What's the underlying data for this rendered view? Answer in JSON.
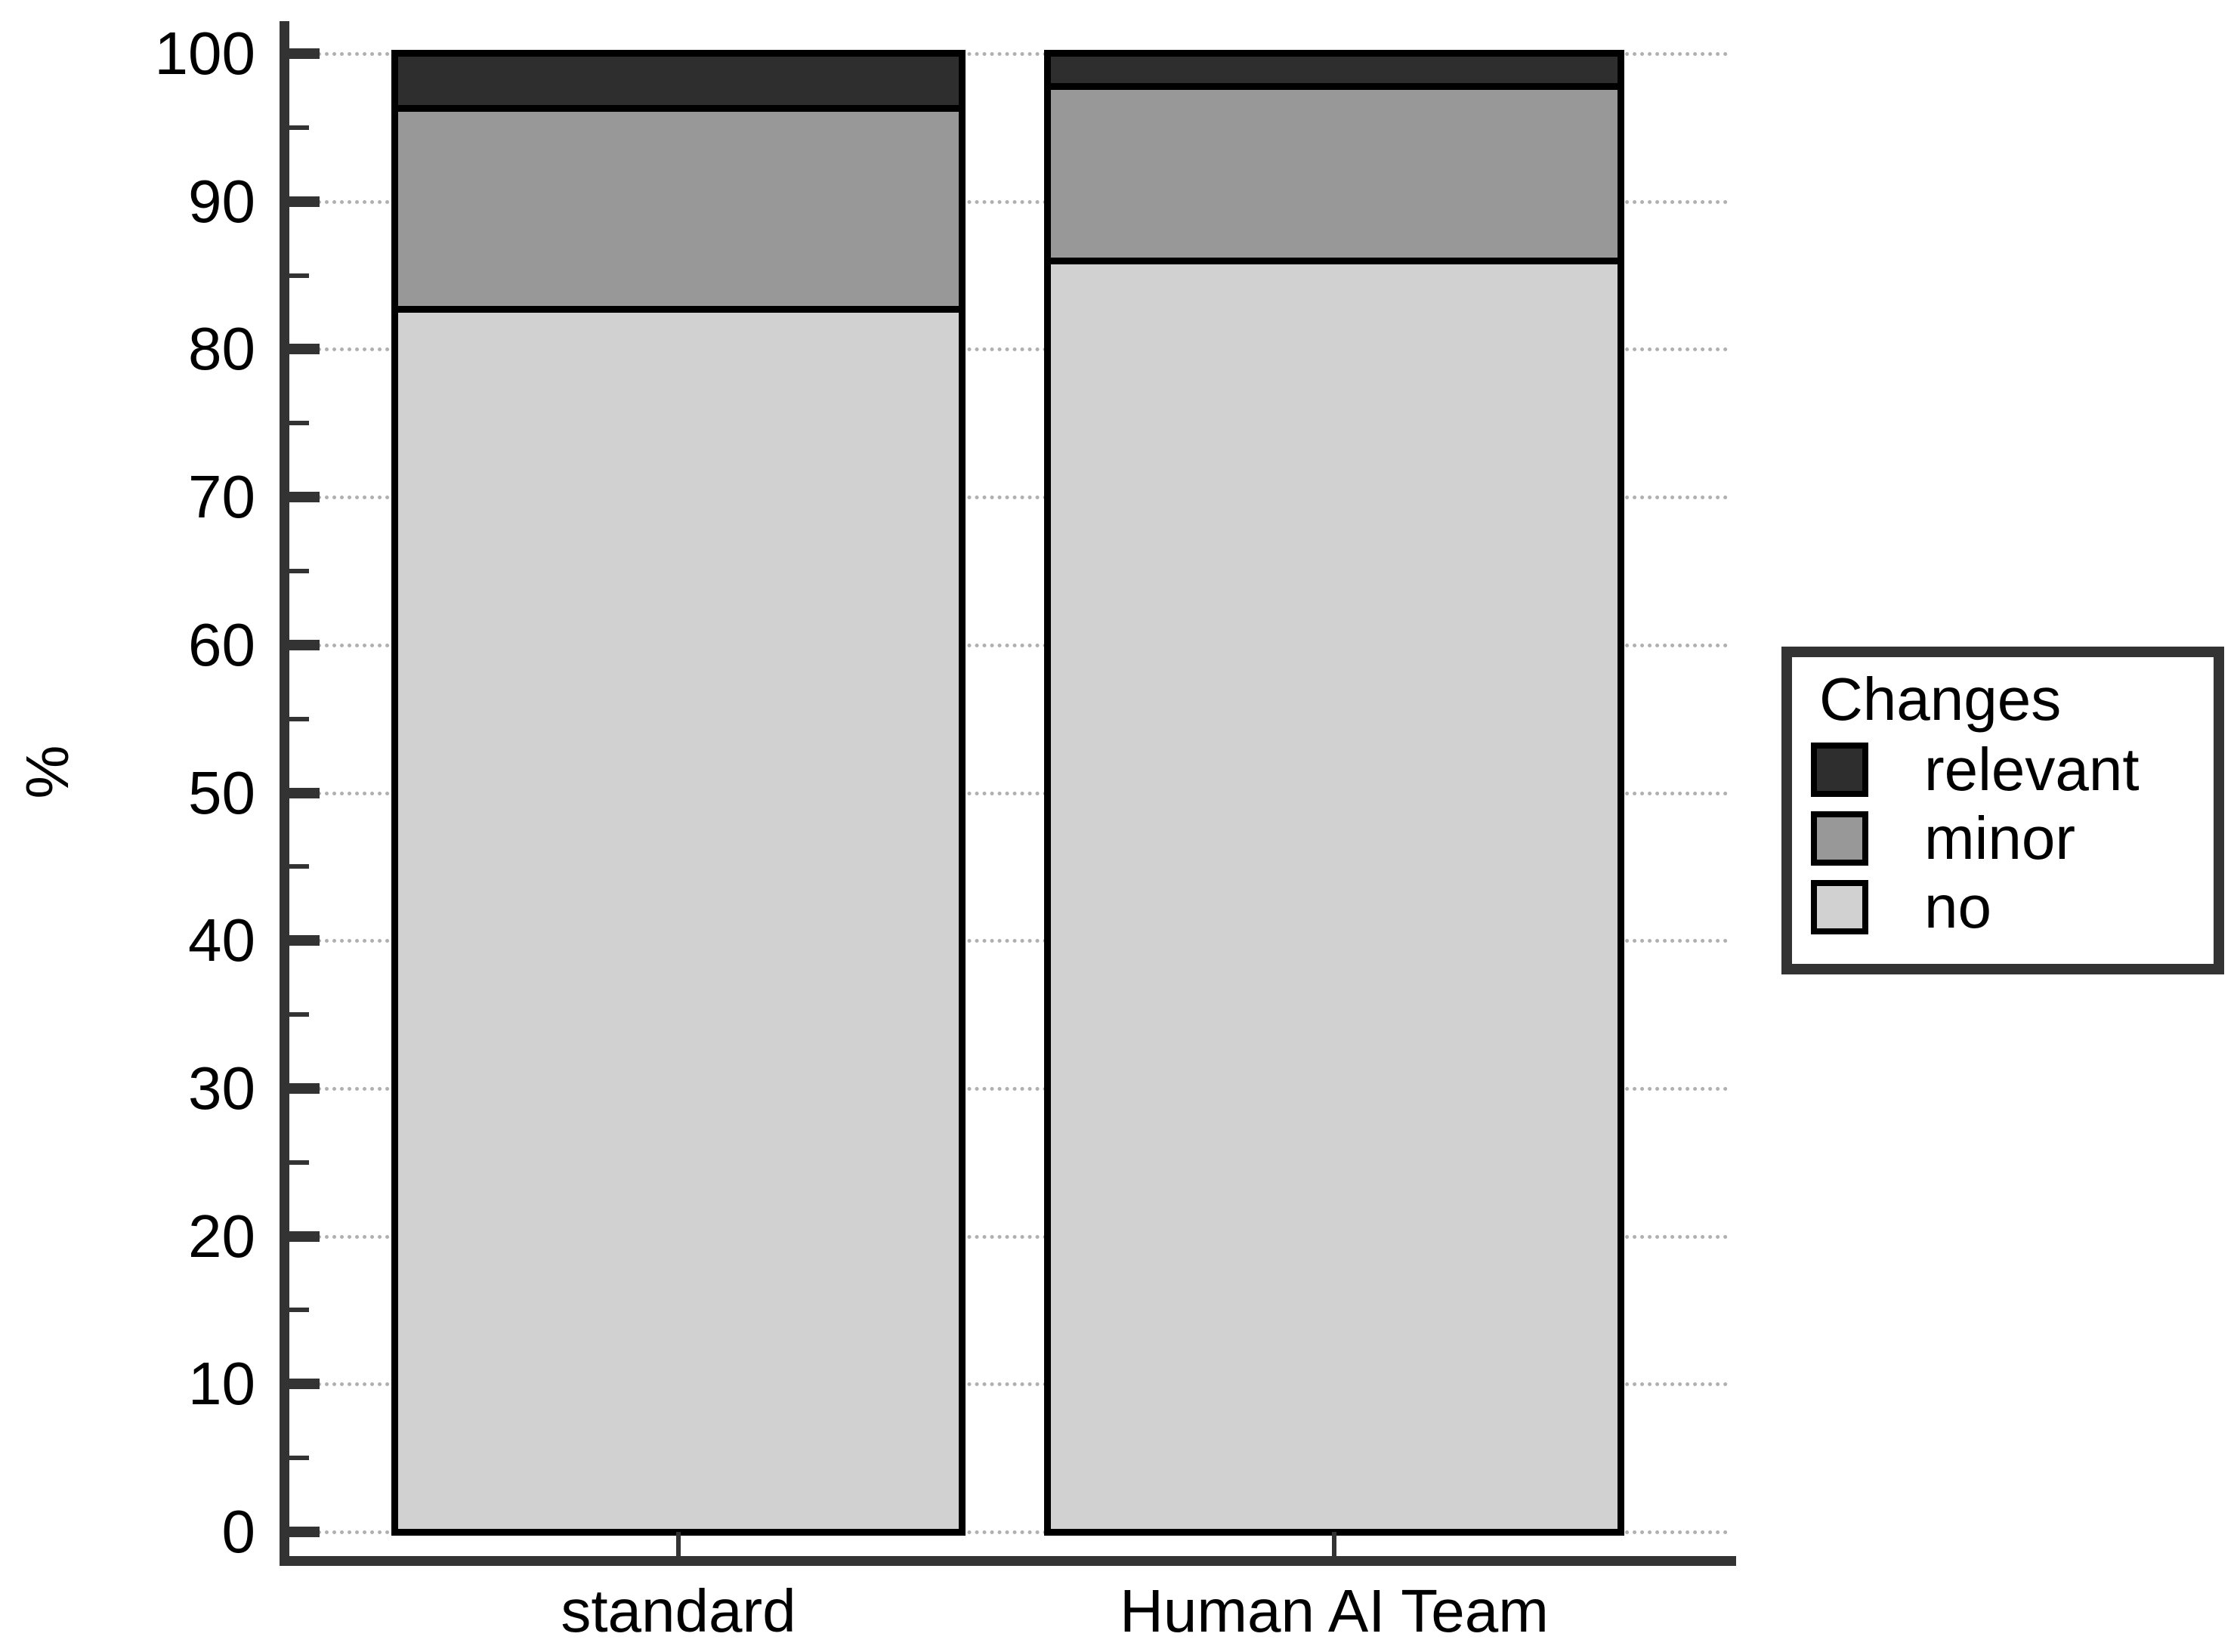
{
  "chart_data": {
    "type": "bar",
    "stacked": true,
    "orientation": "vertical",
    "title": "",
    "xlabel": "",
    "ylabel": "%",
    "ylim": [
      0,
      100
    ],
    "yticks": [
      0,
      10,
      20,
      30,
      40,
      50,
      60,
      70,
      80,
      90,
      100
    ],
    "grid": "horizontal-dotted",
    "categories": [
      "standard",
      "Human AI Team"
    ],
    "series": [
      {
        "name": "no",
        "color": "#d1d1d1",
        "values": [
          83.3,
          86.7
        ]
      },
      {
        "name": "minor",
        "color": "#989898",
        "values": [
          13.3,
          11.5
        ]
      },
      {
        "name": "relevant",
        "color": "#2e2e2e",
        "values": [
          3.3,
          1.8
        ]
      }
    ],
    "legend": {
      "title": "Changes",
      "position": "right",
      "entries": [
        {
          "label": "relevant",
          "color": "#2e2e2e"
        },
        {
          "label": "minor",
          "color": "#989898"
        },
        {
          "label": "no",
          "color": "#d1d1d1"
        }
      ]
    }
  },
  "colors": {
    "axis": "#333333",
    "grid_dots": "#b0b0b0",
    "bar_border": "#000000",
    "background": "#ffffff"
  }
}
